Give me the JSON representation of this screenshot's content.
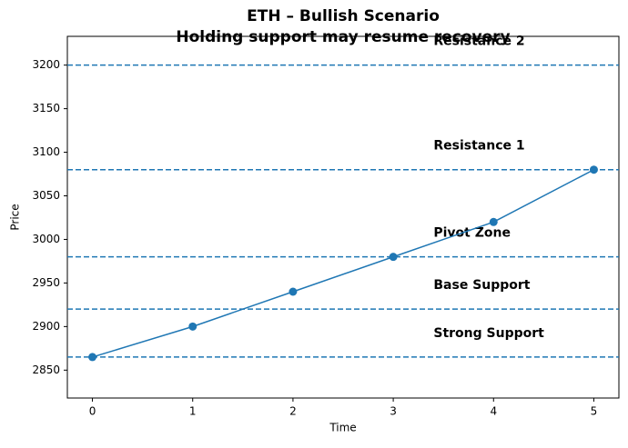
{
  "chart_data": {
    "type": "line",
    "title": [
      "ETH – Bullish Scenario",
      "Holding support may resume recovery"
    ],
    "x_label": "Time",
    "y_label": "Price",
    "x": [
      0,
      1,
      2,
      3,
      4,
      5
    ],
    "series": [
      {
        "color": "#1f77b4",
        "values": [
          2865,
          2900,
          2940,
          2980,
          3020,
          3080
        ]
      }
    ],
    "levels": [
      {
        "label": "Resistance 2",
        "value": 3200
      },
      {
        "label": "Resistance 1",
        "value": 3080
      },
      {
        "label": "Pivot Zone",
        "value": 2980
      },
      {
        "label": "Base Support",
        "value": 2920
      },
      {
        "label": "Strong Support",
        "value": 2865
      }
    ],
    "xlim": [
      -0.25,
      5.25
    ],
    "xticks": [
      0,
      1,
      2,
      3,
      4,
      5
    ],
    "ylim": [
      2818,
      3233
    ],
    "yticks": [
      2850,
      2900,
      2950,
      3000,
      3050,
      3100,
      3150,
      3200
    ]
  }
}
